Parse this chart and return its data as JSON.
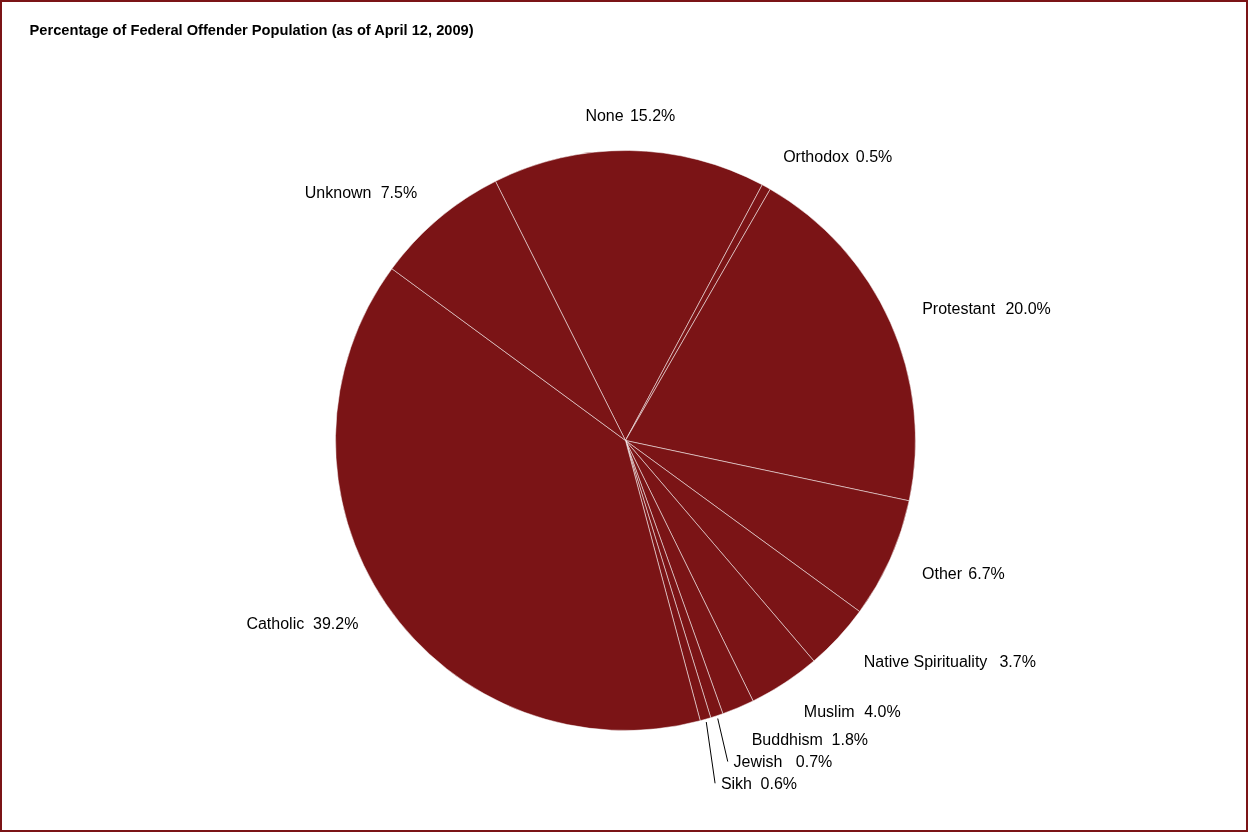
{
  "chart_data": {
    "type": "pie",
    "title": "Percentage of Federal Offender Population (as of April 12, 2009)",
    "categories": [
      "None",
      "Orthodox",
      "Protestant",
      "Other",
      "Native Spirituality",
      "Muslim",
      "Buddhism",
      "Jewish",
      "Sikh",
      "Catholic",
      "Unknown"
    ],
    "values": [
      15.2,
      0.5,
      20.0,
      6.7,
      3.7,
      4.0,
      1.8,
      0.7,
      0.6,
      39.2,
      7.5
    ],
    "colors": [
      "#7b1416",
      "#7b1416",
      "#7b1416",
      "#7b1416",
      "#7b1416",
      "#7b1416",
      "#7b1416",
      "#7b1416",
      "#7b1416",
      "#7b1416",
      "#7b1416"
    ],
    "value_labels": [
      "15.2%",
      "0.5%",
      "20.0%",
      "6.7%",
      "3.7%",
      "4.0%",
      "1.8%",
      "0.7%",
      "0.6%",
      "39.2%",
      "7.5%"
    ]
  }
}
